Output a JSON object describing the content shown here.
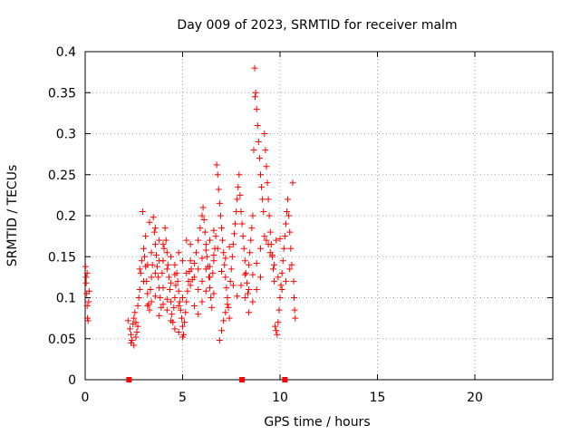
{
  "chart_data": {
    "type": "scatter",
    "title": "Day 009 of 2023, SRMTID for receiver malm",
    "xlabel": "GPS time / hours",
    "ylabel": "SRMTID / TECUs",
    "xlim": [
      0,
      24
    ],
    "ylim": [
      0,
      0.4
    ],
    "xticks": [
      0,
      5,
      10,
      15,
      20
    ],
    "xtick_labels": [
      "0",
      "5",
      "10",
      "15",
      "20"
    ],
    "yticks": [
      0,
      0.05,
      0.1,
      0.15,
      0.2,
      0.25,
      0.3,
      0.35,
      0.4
    ],
    "ytick_labels": [
      "0",
      "0.05",
      "0.1",
      "0.15",
      "0.2",
      "0.25",
      "0.3",
      "0.35",
      "0.4"
    ],
    "grid": true,
    "marker": "plus",
    "color": "#ff0000",
    "series": [
      {
        "points": [
          [
            0.02,
            0.138
          ],
          [
            0.05,
            0.125
          ],
          [
            0.08,
            0.105
          ],
          [
            0.1,
            0.09
          ],
          [
            0.12,
            0.075
          ],
          [
            0.15,
            0.072
          ],
          [
            0.05,
            0.118
          ],
          [
            0.1,
            0.13
          ],
          [
            0.18,
            0.095
          ],
          [
            0.2,
            0.108
          ],
          [
            2.2,
            0.072
          ],
          [
            2.3,
            0.062
          ],
          [
            2.35,
            0.055
          ],
          [
            2.4,
            0.048
          ],
          [
            2.45,
            0.068
          ],
          [
            2.5,
            0.075
          ],
          [
            2.55,
            0.082
          ],
          [
            2.6,
            0.07
          ],
          [
            2.65,
            0.058
          ],
          [
            2.7,
            0.065
          ],
          [
            2.35,
            0.045
          ],
          [
            2.5,
            0.042
          ],
          [
            2.6,
            0.052
          ],
          [
            2.7,
            0.09
          ],
          [
            2.75,
            0.1
          ],
          [
            2.8,
            0.11
          ],
          [
            2.85,
            0.13
          ],
          [
            2.9,
            0.145
          ],
          [
            2.95,
            0.205
          ],
          [
            3.0,
            0.16
          ],
          [
            3.05,
            0.15
          ],
          [
            3.1,
            0.138
          ],
          [
            3.15,
            0.12
          ],
          [
            3.2,
            0.105
          ],
          [
            3.25,
            0.092
          ],
          [
            3.3,
            0.085
          ],
          [
            3.35,
            0.11
          ],
          [
            3.4,
            0.125
          ],
          [
            3.45,
            0.14
          ],
          [
            3.5,
            0.198
          ],
          [
            3.55,
            0.18
          ],
          [
            3.6,
            0.165
          ],
          [
            3.65,
            0.152
          ],
          [
            3.7,
            0.138
          ],
          [
            3.75,
            0.125
          ],
          [
            3.8,
            0.112
          ],
          [
            3.85,
            0.1
          ],
          [
            3.9,
            0.088
          ],
          [
            3.95,
            0.13
          ],
          [
            4.0,
            0.145
          ],
          [
            4.05,
            0.16
          ],
          [
            4.1,
            0.185
          ],
          [
            4.15,
            0.17
          ],
          [
            4.2,
            0.155
          ],
          [
            4.25,
            0.14
          ],
          [
            4.3,
            0.125
          ],
          [
            4.35,
            0.11
          ],
          [
            4.4,
            0.095
          ],
          [
            4.45,
            0.08
          ],
          [
            4.5,
            0.07
          ],
          [
            4.55,
            0.088
          ],
          [
            4.6,
            0.1
          ],
          [
            4.65,
            0.115
          ],
          [
            4.7,
            0.13
          ],
          [
            4.75,
            0.12
          ],
          [
            4.8,
            0.108
          ],
          [
            4.85,
            0.095
          ],
          [
            4.9,
            0.085
          ],
          [
            4.95,
            0.075
          ],
          [
            5.0,
            0.065
          ],
          [
            5.05,
            0.055
          ],
          [
            5.1,
            0.07
          ],
          [
            5.15,
            0.082
          ],
          [
            5.2,
            0.095
          ],
          [
            5.25,
            0.108
          ],
          [
            5.3,
            0.12
          ],
          [
            5.35,
            0.132
          ],
          [
            5.4,
            0.145
          ],
          [
            5.45,
            0.135
          ],
          [
            5.5,
            0.122
          ],
          [
            3.1,
            0.175
          ],
          [
            3.3,
            0.192
          ],
          [
            3.6,
            0.185
          ],
          [
            3.8,
            0.17
          ],
          [
            4.0,
            0.112
          ],
          [
            4.2,
            0.098
          ],
          [
            4.4,
            0.118
          ],
          [
            4.6,
            0.128
          ],
          [
            4.8,
            0.09
          ],
          [
            5.0,
            0.1
          ],
          [
            3.2,
            0.09
          ],
          [
            3.4,
            0.095
          ],
          [
            3.6,
            0.102
          ],
          [
            3.8,
            0.078
          ],
          [
            4.0,
            0.092
          ],
          [
            4.2,
            0.085
          ],
          [
            4.4,
            0.072
          ],
          [
            4.6,
            0.062
          ],
          [
            4.8,
            0.058
          ],
          [
            5.0,
            0.052
          ],
          [
            5.6,
            0.142
          ],
          [
            5.7,
            0.155
          ],
          [
            5.8,
            0.17
          ],
          [
            5.9,
            0.185
          ],
          [
            6.0,
            0.2
          ],
          [
            6.05,
            0.21
          ],
          [
            6.1,
            0.195
          ],
          [
            6.15,
            0.18
          ],
          [
            6.2,
            0.165
          ],
          [
            6.25,
            0.15
          ],
          [
            6.3,
            0.138
          ],
          [
            6.35,
            0.125
          ],
          [
            6.4,
            0.112
          ],
          [
            6.45,
            0.1
          ],
          [
            6.5,
            0.088
          ],
          [
            6.55,
            0.13
          ],
          [
            6.6,
            0.145
          ],
          [
            6.65,
            0.16
          ],
          [
            6.7,
            0.175
          ],
          [
            6.75,
            0.262
          ],
          [
            6.8,
            0.25
          ],
          [
            6.85,
            0.232
          ],
          [
            6.9,
            0.215
          ],
          [
            6.95,
            0.2
          ],
          [
            7.0,
            0.185
          ],
          [
            7.05,
            0.17
          ],
          [
            7.1,
            0.155
          ],
          [
            7.15,
            0.14
          ],
          [
            7.2,
            0.125
          ],
          [
            7.25,
            0.112
          ],
          [
            7.3,
            0.1
          ],
          [
            7.35,
            0.088
          ],
          [
            7.4,
            0.075
          ],
          [
            7.45,
            0.12
          ],
          [
            7.5,
            0.135
          ],
          [
            7.55,
            0.15
          ],
          [
            7.6,
            0.165
          ],
          [
            7.65,
            0.178
          ],
          [
            7.7,
            0.19
          ],
          [
            7.75,
            0.205
          ],
          [
            6.9,
            0.048
          ],
          [
            7.0,
            0.06
          ],
          [
            7.1,
            0.072
          ],
          [
            7.2,
            0.082
          ],
          [
            7.3,
            0.092
          ],
          [
            6.6,
            0.105
          ],
          [
            6.4,
            0.125
          ],
          [
            6.2,
            0.135
          ],
          [
            6.0,
            0.12
          ],
          [
            5.8,
            0.11
          ],
          [
            7.8,
            0.22
          ],
          [
            7.85,
            0.235
          ],
          [
            7.9,
            0.25
          ],
          [
            7.95,
            0.225
          ],
          [
            8.0,
            0.205
          ],
          [
            8.05,
            0.19
          ],
          [
            8.1,
            0.175
          ],
          [
            8.15,
            0.16
          ],
          [
            8.2,
            0.145
          ],
          [
            8.25,
            0.13
          ],
          [
            8.3,
            0.118
          ],
          [
            8.35,
            0.105
          ],
          [
            8.4,
            0.14
          ],
          [
            8.45,
            0.155
          ],
          [
            8.5,
            0.17
          ],
          [
            8.55,
            0.185
          ],
          [
            8.6,
            0.2
          ],
          [
            8.65,
            0.28
          ],
          [
            8.7,
            0.38
          ],
          [
            8.72,
            0.345
          ],
          [
            8.75,
            0.35
          ],
          [
            8.8,
            0.33
          ],
          [
            8.85,
            0.31
          ],
          [
            8.9,
            0.29
          ],
          [
            8.95,
            0.27
          ],
          [
            9.0,
            0.25
          ],
          [
            9.05,
            0.235
          ],
          [
            9.1,
            0.22
          ],
          [
            9.15,
            0.205
          ],
          [
            9.2,
            0.3
          ],
          [
            9.25,
            0.28
          ],
          [
            9.3,
            0.26
          ],
          [
            9.35,
            0.24
          ],
          [
            9.4,
            0.22
          ],
          [
            9.45,
            0.2
          ],
          [
            9.5,
            0.18
          ],
          [
            9.55,
            0.165
          ],
          [
            9.6,
            0.15
          ],
          [
            9.65,
            0.135
          ],
          [
            9.7,
            0.12
          ],
          [
            8.2,
            0.1
          ],
          [
            8.4,
            0.11
          ],
          [
            8.6,
            0.128
          ],
          [
            8.8,
            0.142
          ],
          [
            9.0,
            0.16
          ],
          [
            9.2,
            0.175
          ],
          [
            9.4,
            0.165
          ],
          [
            9.6,
            0.152
          ],
          [
            9.8,
            0.17
          ],
          [
            10.0,
            0.172
          ],
          [
            9.75,
            0.065
          ],
          [
            9.8,
            0.06
          ],
          [
            9.85,
            0.055
          ],
          [
            9.9,
            0.07
          ],
          [
            9.95,
            0.085
          ],
          [
            10.0,
            0.1
          ],
          [
            10.05,
            0.115
          ],
          [
            10.1,
            0.13
          ],
          [
            10.15,
            0.145
          ],
          [
            10.2,
            0.16
          ],
          [
            10.25,
            0.175
          ],
          [
            10.3,
            0.19
          ],
          [
            10.35,
            0.205
          ],
          [
            10.4,
            0.22
          ],
          [
            10.45,
            0.2
          ],
          [
            10.5,
            0.18
          ],
          [
            10.55,
            0.16
          ],
          [
            10.6,
            0.14
          ],
          [
            10.65,
            0.24
          ],
          [
            10.7,
            0.12
          ],
          [
            10.72,
            0.1
          ],
          [
            10.75,
            0.085
          ],
          [
            10.78,
            0.075
          ],
          [
            10.5,
            0.135
          ],
          [
            10.3,
            0.12
          ],
          [
            10.1,
            0.11
          ],
          [
            9.9,
            0.125
          ],
          [
            9.7,
            0.14
          ],
          [
            9.5,
            0.155
          ],
          [
            9.3,
            0.17
          ],
          [
            5.2,
            0.17
          ],
          [
            5.4,
            0.165
          ],
          [
            5.6,
            0.09
          ],
          [
            5.8,
            0.08
          ],
          [
            6.0,
            0.095
          ],
          [
            6.2,
            0.108
          ],
          [
            6.4,
            0.138
          ],
          [
            6.6,
            0.152
          ],
          [
            6.8,
            0.16
          ],
          [
            7.0,
            0.132
          ],
          [
            7.2,
            0.148
          ],
          [
            7.4,
            0.162
          ],
          [
            7.6,
            0.115
          ],
          [
            7.8,
            0.102
          ],
          [
            8.0,
            0.115
          ],
          [
            8.2,
            0.128
          ],
          [
            8.4,
            0.082
          ],
          [
            8.6,
            0.095
          ],
          [
            8.8,
            0.11
          ],
          [
            9.0,
            0.125
          ],
          [
            2.8,
            0.135
          ],
          [
            3.0,
            0.12
          ],
          [
            3.2,
            0.14
          ],
          [
            3.4,
            0.155
          ],
          [
            3.6,
            0.13
          ],
          [
            3.8,
            0.145
          ],
          [
            4.0,
            0.165
          ],
          [
            4.2,
            0.135
          ],
          [
            4.4,
            0.15
          ],
          [
            4.6,
            0.14
          ],
          [
            4.8,
            0.155
          ],
          [
            5.0,
            0.145
          ],
          [
            5.2,
            0.13
          ],
          [
            5.4,
            0.115
          ],
          [
            5.6,
            0.125
          ],
          [
            5.8,
            0.135
          ],
          [
            6.0,
            0.148
          ],
          [
            6.2,
            0.158
          ],
          [
            6.4,
            0.17
          ],
          [
            6.6,
            0.182
          ]
        ]
      }
    ],
    "zero_markers_x": [
      2.25,
      8.05,
      10.25
    ]
  }
}
